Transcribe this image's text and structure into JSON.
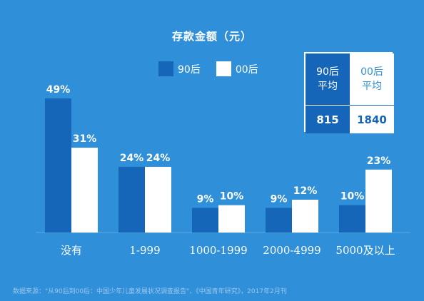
{
  "chart_data": {
    "type": "bar",
    "title": "存款金额（元）",
    "categories": [
      "没有",
      "1-999",
      "1000-1999",
      "2000-4999",
      "5000及以上"
    ],
    "series": [
      {
        "name": "90后",
        "values": [
          49,
          24,
          9,
          9,
          10
        ],
        "labels": [
          "49%",
          "24%",
          "9%",
          "9%",
          "10%"
        ]
      },
      {
        "name": "00后",
        "values": [
          31,
          24,
          10,
          12,
          23
        ],
        "labels": [
          "31%",
          "24%",
          "10%",
          "12%",
          "23%"
        ]
      }
    ],
    "ylim": [
      0,
      49
    ],
    "grid": false,
    "legend_position": "top-center"
  },
  "colors": {
    "background": "#2f8fd8",
    "series_90": "#1565b8",
    "series_00": "#ffffff",
    "text": "#ffffff"
  },
  "legend": {
    "items": [
      {
        "label": "90后",
        "color": "#1565b8"
      },
      {
        "label": "00后",
        "color": "#ffffff"
      }
    ]
  },
  "average_box": {
    "col_90_label": "90后\n平均",
    "col_00_label": "00后\n平均",
    "val_90": "815",
    "val_00": "1840"
  },
  "source": "数据来源：\"从90后到00后：中国少年儿童发展状况调查报告\"，《中国青年研究》，2017年2月刊"
}
